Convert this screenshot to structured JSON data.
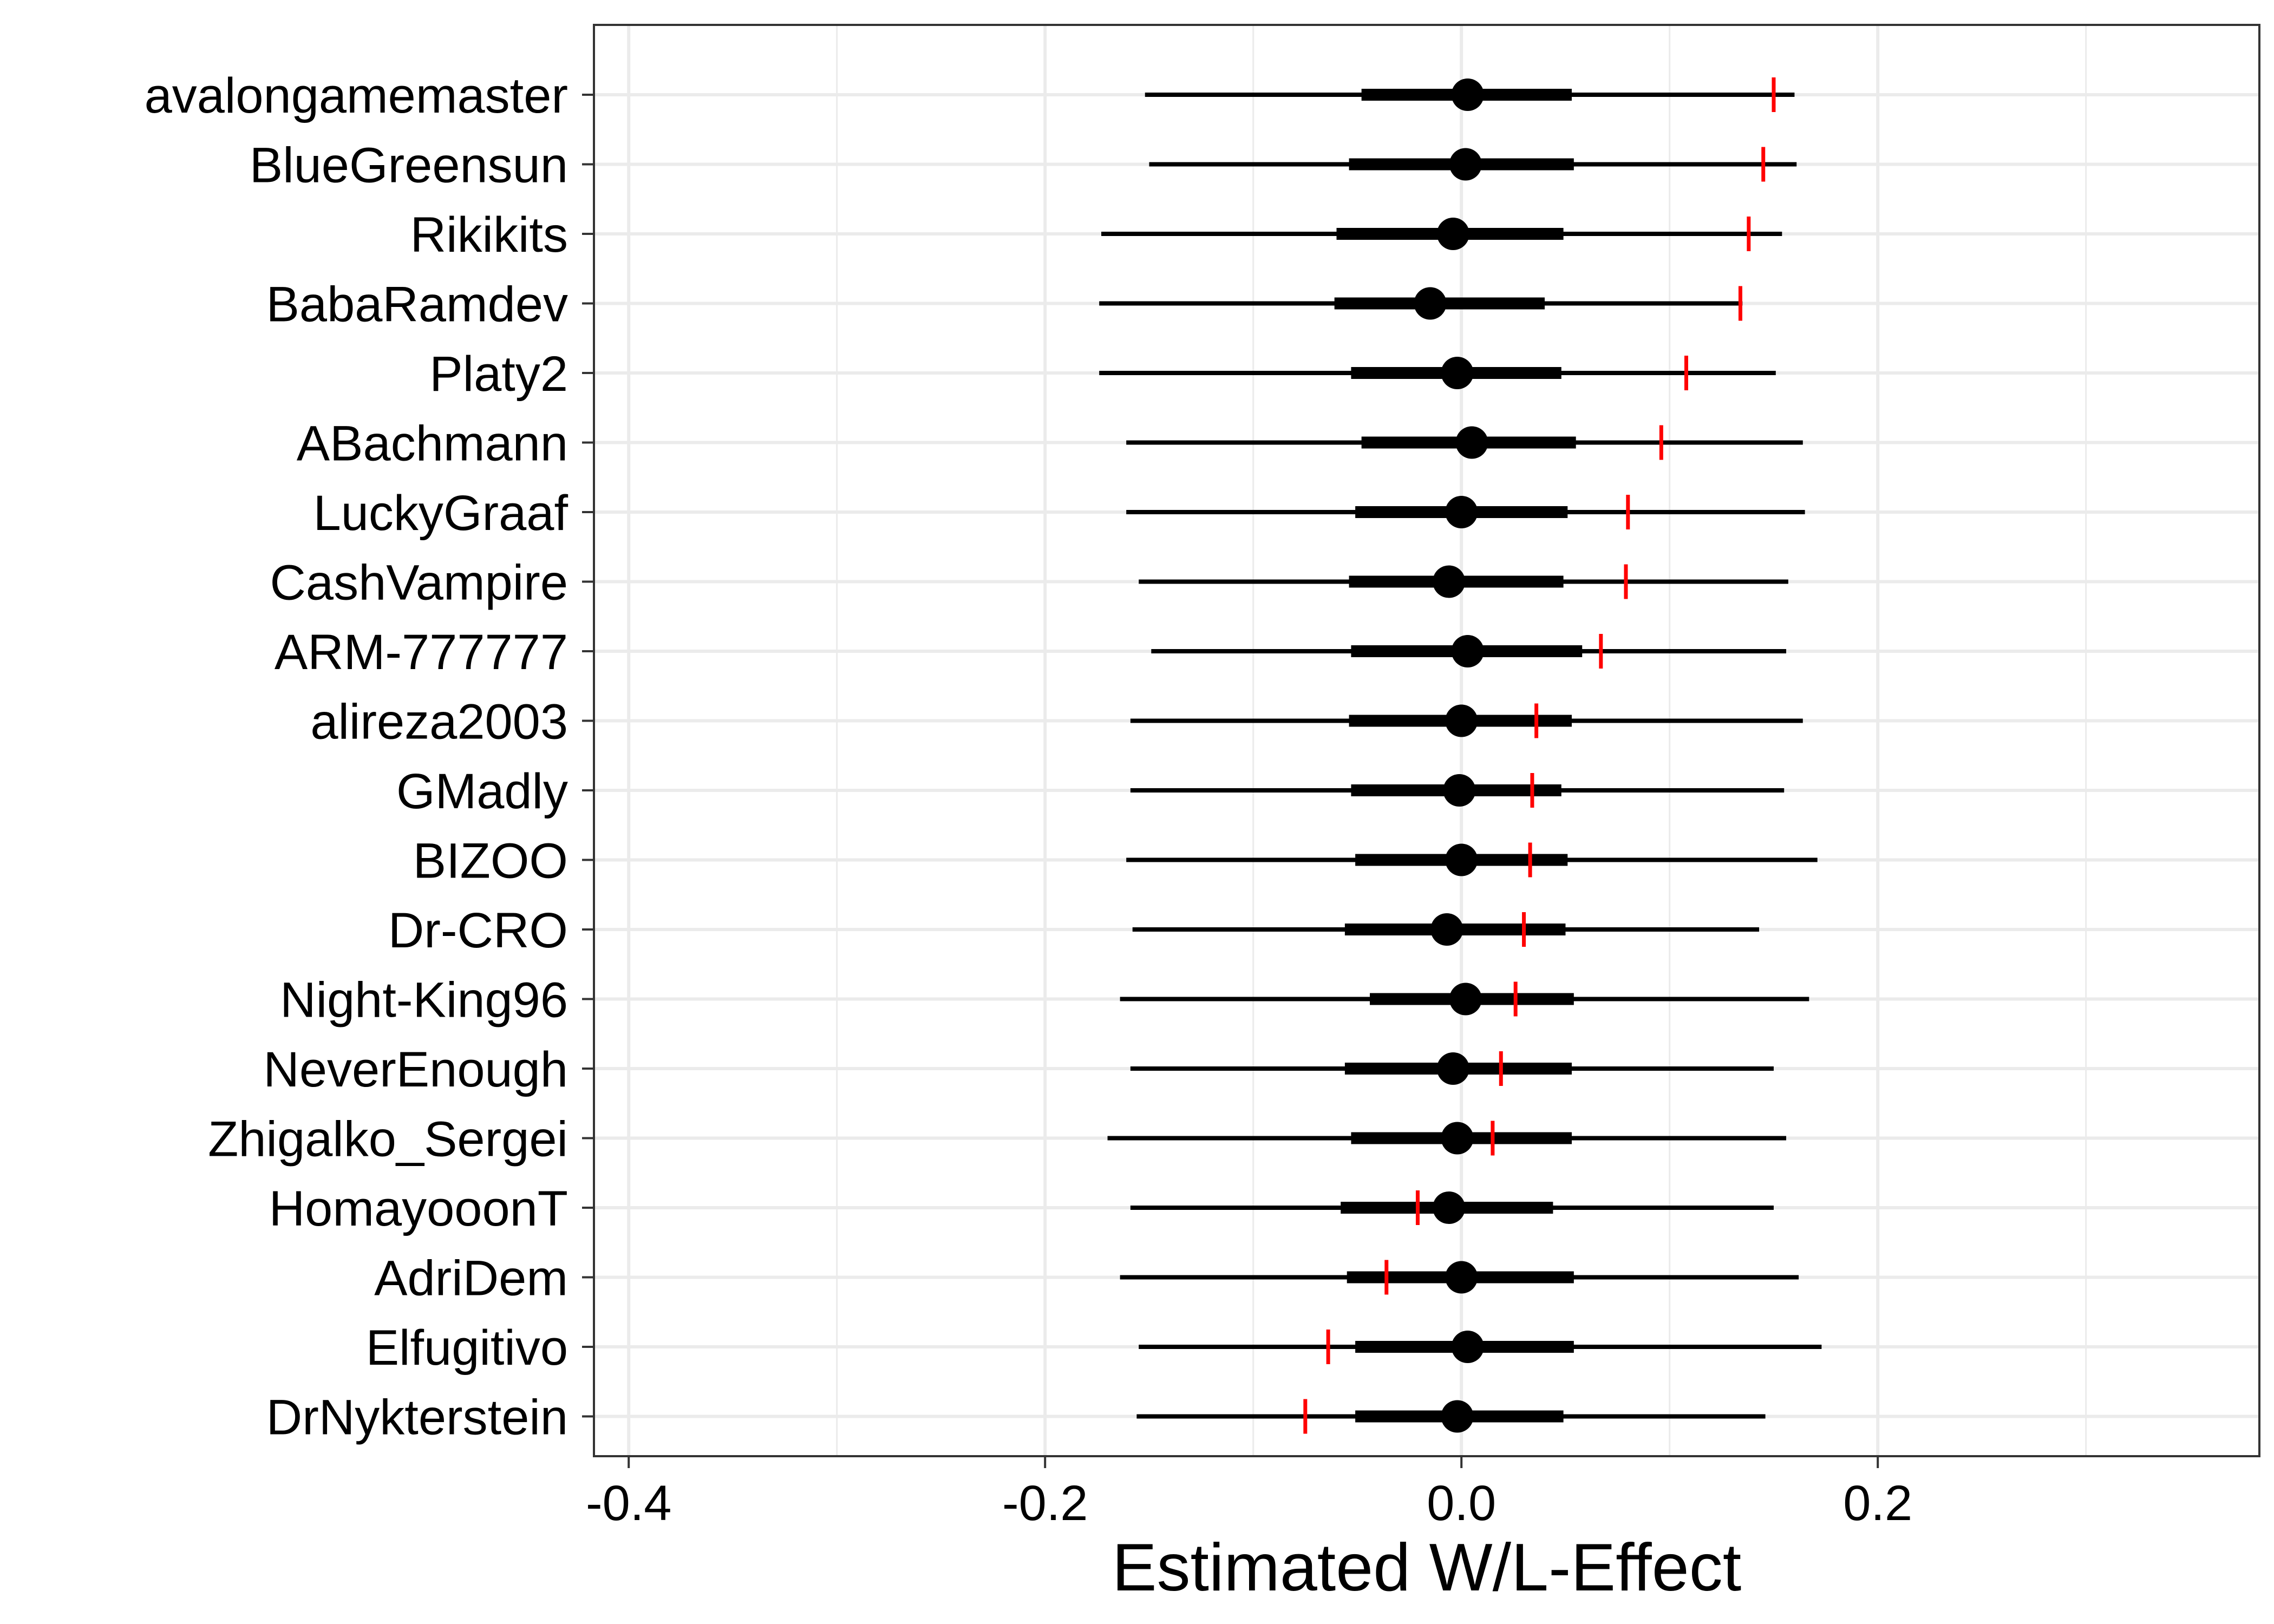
{
  "chart_data": {
    "type": "interval-dot",
    "title": "",
    "xlabel": "Estimated W/L-Effect",
    "ylabel": "",
    "xlim": [
      -0.4167,
      0.3833
    ],
    "x_ticks": [
      -0.4,
      -0.2,
      0.0,
      0.2
    ],
    "x_tick_labels": [
      "-0.4",
      "-0.2",
      "0.0",
      "0.2"
    ],
    "x_minor_gridlines": [
      -0.3,
      -0.1,
      0.1,
      0.3
    ],
    "grid": true,
    "colors": {
      "interval": "#000000",
      "marker": "#ff0000",
      "grid": "#ebebeb",
      "panel_border": "#333333"
    },
    "legend": "none",
    "series": [
      {
        "name": "avalongamemaster",
        "outer_low": -0.152,
        "inner_low": -0.048,
        "estimate": 0.003,
        "inner_high": 0.053,
        "outer_high": 0.16,
        "marker": 0.15
      },
      {
        "name": "BlueGreensun",
        "outer_low": -0.15,
        "inner_low": -0.054,
        "estimate": 0.002,
        "inner_high": 0.054,
        "outer_high": 0.161,
        "marker": 0.145
      },
      {
        "name": "Rikikits",
        "outer_low": -0.173,
        "inner_low": -0.06,
        "estimate": -0.004,
        "inner_high": 0.049,
        "outer_high": 0.154,
        "marker": 0.138
      },
      {
        "name": "BabaRamdev",
        "outer_low": -0.174,
        "inner_low": -0.061,
        "estimate": -0.015,
        "inner_high": 0.04,
        "outer_high": 0.135,
        "marker": 0.134
      },
      {
        "name": "Platy2",
        "outer_low": -0.174,
        "inner_low": -0.053,
        "estimate": -0.002,
        "inner_high": 0.048,
        "outer_high": 0.151,
        "marker": 0.108
      },
      {
        "name": "ABachmann",
        "outer_low": -0.161,
        "inner_low": -0.048,
        "estimate": 0.005,
        "inner_high": 0.055,
        "outer_high": 0.164,
        "marker": 0.096
      },
      {
        "name": "LuckyGraaf",
        "outer_low": -0.161,
        "inner_low": -0.051,
        "estimate": 0.0,
        "inner_high": 0.051,
        "outer_high": 0.165,
        "marker": 0.08
      },
      {
        "name": "CashVampire",
        "outer_low": -0.155,
        "inner_low": -0.054,
        "estimate": -0.006,
        "inner_high": 0.049,
        "outer_high": 0.157,
        "marker": 0.079
      },
      {
        "name": "ARM-777777",
        "outer_low": -0.149,
        "inner_low": -0.053,
        "estimate": 0.003,
        "inner_high": 0.058,
        "outer_high": 0.156,
        "marker": 0.067
      },
      {
        "name": "alireza2003",
        "outer_low": -0.159,
        "inner_low": -0.054,
        "estimate": 0.0,
        "inner_high": 0.053,
        "outer_high": 0.164,
        "marker": 0.036
      },
      {
        "name": "GMadly",
        "outer_low": -0.159,
        "inner_low": -0.053,
        "estimate": -0.001,
        "inner_high": 0.048,
        "outer_high": 0.155,
        "marker": 0.034
      },
      {
        "name": "BIZOO",
        "outer_low": -0.161,
        "inner_low": -0.051,
        "estimate": 0.0,
        "inner_high": 0.051,
        "outer_high": 0.171,
        "marker": 0.033
      },
      {
        "name": "Dr-CRO",
        "outer_low": -0.158,
        "inner_low": -0.056,
        "estimate": -0.007,
        "inner_high": 0.05,
        "outer_high": 0.143,
        "marker": 0.03
      },
      {
        "name": "Night-King96",
        "outer_low": -0.164,
        "inner_low": -0.044,
        "estimate": 0.002,
        "inner_high": 0.054,
        "outer_high": 0.167,
        "marker": 0.026
      },
      {
        "name": "NeverEnough",
        "outer_low": -0.159,
        "inner_low": -0.056,
        "estimate": -0.004,
        "inner_high": 0.053,
        "outer_high": 0.15,
        "marker": 0.019
      },
      {
        "name": "Zhigalko_Sergei",
        "outer_low": -0.17,
        "inner_low": -0.053,
        "estimate": -0.002,
        "inner_high": 0.053,
        "outer_high": 0.156,
        "marker": 0.015
      },
      {
        "name": "HomayooonT",
        "outer_low": -0.159,
        "inner_low": -0.058,
        "estimate": -0.006,
        "inner_high": 0.044,
        "outer_high": 0.15,
        "marker": -0.021
      },
      {
        "name": "AdriDem",
        "outer_low": -0.164,
        "inner_low": -0.055,
        "estimate": 0.0,
        "inner_high": 0.054,
        "outer_high": 0.162,
        "marker": -0.036
      },
      {
        "name": "Elfugitivo",
        "outer_low": -0.155,
        "inner_low": -0.051,
        "estimate": 0.003,
        "inner_high": 0.054,
        "outer_high": 0.173,
        "marker": -0.064
      },
      {
        "name": "DrNykterstein",
        "outer_low": -0.156,
        "inner_low": -0.051,
        "estimate": -0.002,
        "inner_high": 0.049,
        "outer_high": 0.146,
        "marker": -0.075
      }
    ]
  }
}
